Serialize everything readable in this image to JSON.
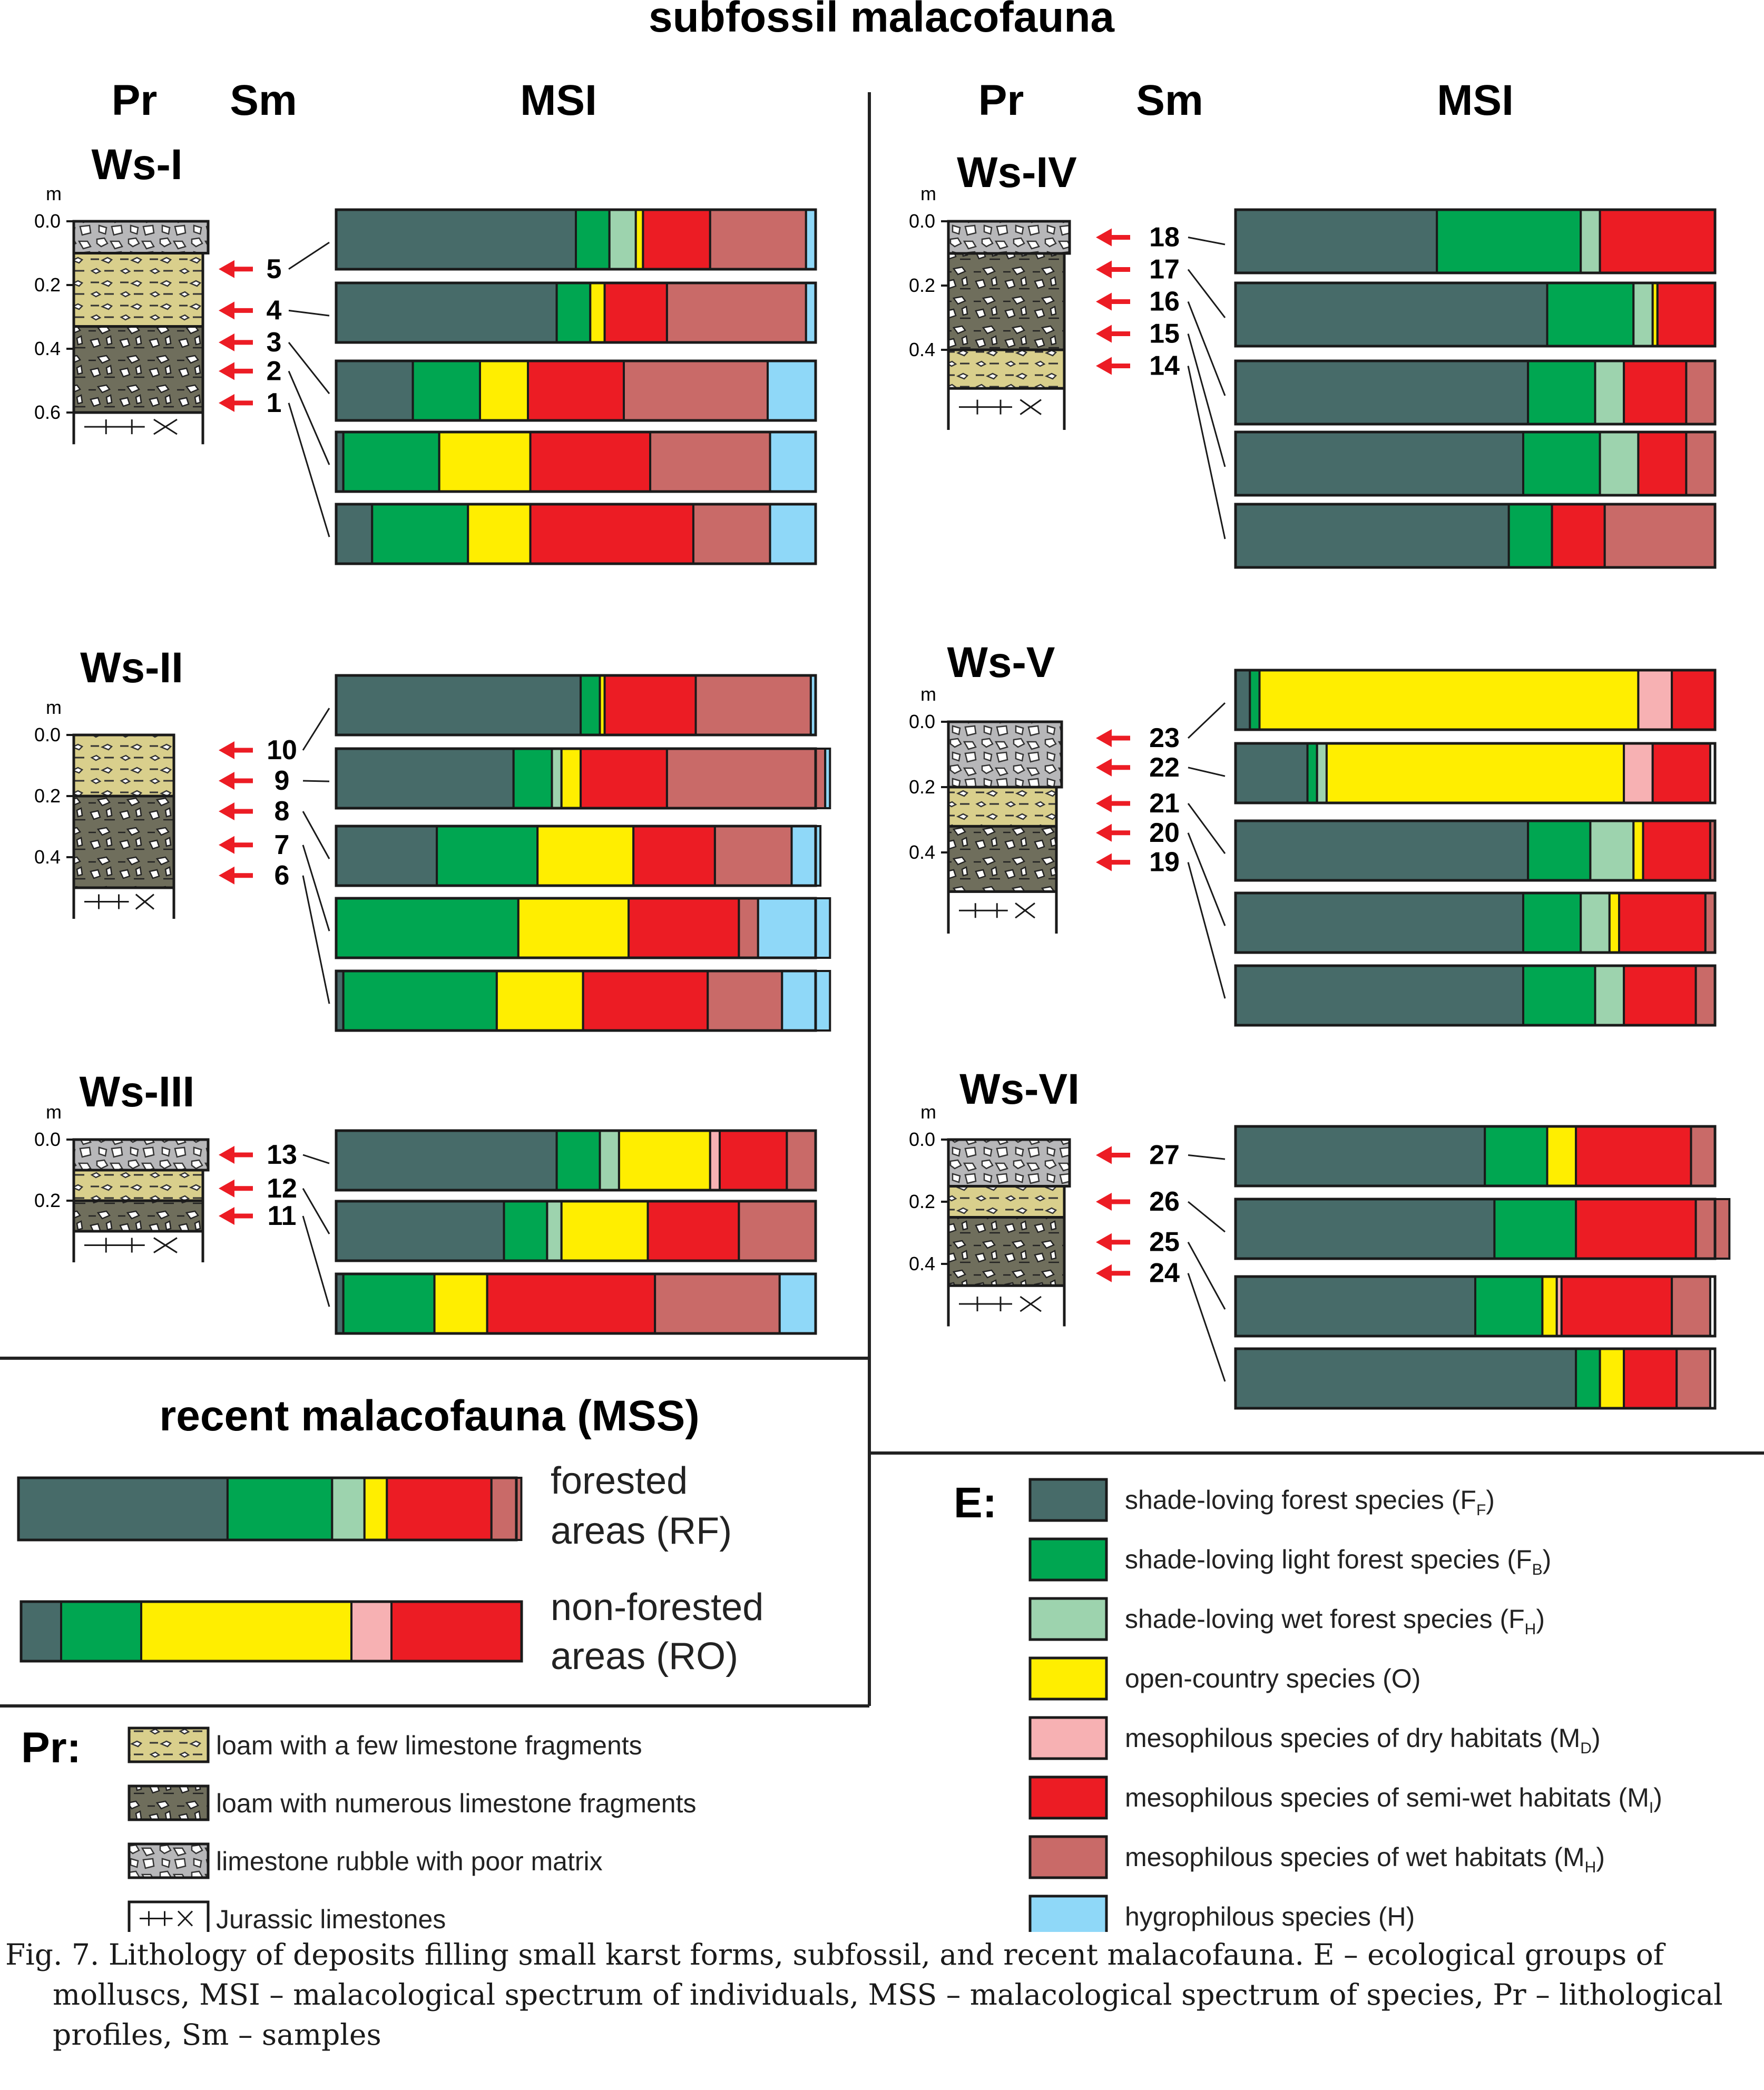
{
  "title": "subfossil malacofauna",
  "column_headers": {
    "pr": "Pr",
    "sm": "Sm",
    "msi": "MSI"
  },
  "depth_unit": "m",
  "colors": {
    "FF": "#476b69",
    "FB": "#00a651",
    "FH": "#9dd3ae",
    "O": "#ffee00",
    "MD": "#f7b1b3",
    "MI": "#ec1c24",
    "MH": "#c96a68",
    "H": "#8fd8f8"
  },
  "group_order": [
    "FF",
    "FB",
    "FH",
    "O",
    "MD",
    "MI",
    "MH",
    "H"
  ],
  "chart_data": {
    "type": "bar",
    "stacked": true,
    "orientation": "horizontal",
    "units": "proportion of total (MSI / MSS)",
    "profiles": [
      {
        "name": "Ws-I",
        "depth_ticks": [
          "0.0",
          "0.2",
          "0.4",
          "0.6"
        ],
        "max_depth": 0.65,
        "layers": [
          {
            "type": "rubble",
            "top": 0.0,
            "bottom": 0.1
          },
          {
            "type": "loam_few",
            "top": 0.1,
            "bottom": 0.33
          },
          {
            "type": "loam_many",
            "top": 0.33,
            "bottom": 0.6
          },
          {
            "type": "jurassic",
            "top": 0.6,
            "bottom": 0.65
          }
        ],
        "samples": [
          {
            "id": "5",
            "depth": 0.15,
            "values": {
              "FF": 0.5,
              "FB": 0.07,
              "FH": 0.055,
              "O": 0.015,
              "MI": 0.14,
              "MH": 0.2,
              "H": 0.02
            }
          },
          {
            "id": "4",
            "depth": 0.28,
            "values": {
              "FF": 0.46,
              "FB": 0.07,
              "O": 0.03,
              "MI": 0.13,
              "MH": 0.29,
              "H": 0.02
            }
          },
          {
            "id": "3",
            "depth": 0.38,
            "values": {
              "FF": 0.16,
              "FB": 0.14,
              "O": 0.1,
              "MI": 0.2,
              "MH": 0.3,
              "H": 0.1
            }
          },
          {
            "id": "2",
            "depth": 0.47,
            "values": {
              "FF": 0.015,
              "FB": 0.2,
              "O": 0.19,
              "MI": 0.25,
              "MH": 0.25,
              "H": 0.095
            }
          },
          {
            "id": "1",
            "depth": 0.57,
            "values": {
              "FF": 0.075,
              "FB": 0.2,
              "O": 0.13,
              "MI": 0.34,
              "MH": 0.16,
              "H": 0.095
            }
          }
        ]
      },
      {
        "name": "Ws-II",
        "depth_ticks": [
          "0.0",
          "0.2",
          "0.4"
        ],
        "max_depth": 0.55,
        "layers": [
          {
            "type": "loam_few",
            "top": 0.0,
            "bottom": 0.2
          },
          {
            "type": "loam_many",
            "top": 0.2,
            "bottom": 0.5
          },
          {
            "type": "jurassic",
            "top": 0.5,
            "bottom": 0.55
          }
        ],
        "samples": [
          {
            "id": "10",
            "depth": 0.05,
            "values": {
              "FF": 0.51,
              "FB": 0.04,
              "O": 0.01,
              "MI": 0.19,
              "MH": 0.24,
              "H": 0.01
            }
          },
          {
            "id": "9",
            "depth": 0.15,
            "values": {
              "FF": 0.37,
              "FB": 0.08,
              "FH": 0.02,
              "O": 0.04,
              "MI": 0.18,
              "MH": 0.33,
              "H": 0.01
            }
          },
          {
            "id": "8",
            "depth": 0.25,
            "values": {
              "FF": 0.21,
              "FB": 0.21,
              "O": 0.2,
              "MI": 0.17,
              "MH": 0.16,
              "H": 0.06
            }
          },
          {
            "id": "7",
            "depth": 0.36,
            "values": {
              "FF": 0.0,
              "FB": 0.38,
              "O": 0.23,
              "MI": 0.23,
              "MH": 0.04,
              "H": 0.15
            }
          },
          {
            "id": "6",
            "depth": 0.46,
            "values": {
              "FF": 0.015,
              "FB": 0.32,
              "O": 0.18,
              "MI": 0.26,
              "MH": 0.155,
              "H": 0.1
            }
          }
        ]
      },
      {
        "name": "Ws-III",
        "depth_ticks": [
          "0.0",
          "0.2"
        ],
        "max_depth": 0.35,
        "layers": [
          {
            "type": "rubble",
            "top": 0.0,
            "bottom": 0.1
          },
          {
            "type": "loam_few",
            "top": 0.1,
            "bottom": 0.2
          },
          {
            "type": "loam_many",
            "top": 0.2,
            "bottom": 0.3
          },
          {
            "type": "jurassic",
            "top": 0.3,
            "bottom": 0.35
          }
        ],
        "samples": [
          {
            "id": "13",
            "depth": 0.05,
            "values": {
              "FF": 0.46,
              "FB": 0.09,
              "FH": 0.04,
              "O": 0.19,
              "MD": 0.02,
              "MI": 0.14,
              "MH": 0.06
            }
          },
          {
            "id": "12",
            "depth": 0.16,
            "values": {
              "FF": 0.35,
              "FB": 0.09,
              "FH": 0.03,
              "O": 0.18,
              "MI": 0.19,
              "MH": 0.16
            }
          },
          {
            "id": "11",
            "depth": 0.25,
            "values": {
              "FF": 0.015,
              "FB": 0.19,
              "O": 0.11,
              "MI": 0.35,
              "MH": 0.26,
              "H": 0.075
            }
          }
        ]
      },
      {
        "name": "Ws-IV",
        "depth_ticks": [
          "0.0",
          "0.2",
          "0.4"
        ],
        "max_depth": 0.6,
        "layers": [
          {
            "type": "rubble",
            "top": 0.0,
            "bottom": 0.1
          },
          {
            "type": "loam_many",
            "top": 0.1,
            "bottom": 0.4
          },
          {
            "type": "loam_few",
            "top": 0.4,
            "bottom": 0.52
          },
          {
            "type": "jurassic",
            "top": 0.52,
            "bottom": 0.6
          }
        ],
        "samples": [
          {
            "id": "18",
            "depth": 0.05,
            "values": {
              "FF": 0.42,
              "FB": 0.3,
              "FH": 0.04,
              "MI": 0.24
            }
          },
          {
            "id": "17",
            "depth": 0.15,
            "values": {
              "FF": 0.65,
              "FB": 0.18,
              "FH": 0.04,
              "O": 0.01,
              "MI": 0.12
            }
          },
          {
            "id": "16",
            "depth": 0.25,
            "values": {
              "FF": 0.61,
              "FB": 0.14,
              "FH": 0.06,
              "MI": 0.13,
              "MH": 0.06
            }
          },
          {
            "id": "15",
            "depth": 0.35,
            "values": {
              "FF": 0.6,
              "FB": 0.16,
              "FH": 0.08,
              "MI": 0.1,
              "MH": 0.06
            }
          },
          {
            "id": "14",
            "depth": 0.45,
            "values": {
              "FF": 0.57,
              "FB": 0.09,
              "MI": 0.11,
              "MH": 0.23
            }
          }
        ]
      },
      {
        "name": "Ws-V",
        "depth_ticks": [
          "0.0",
          "0.2",
          "0.4"
        ],
        "max_depth": 0.6,
        "layers": [
          {
            "type": "rubble",
            "top": 0.0,
            "bottom": 0.2
          },
          {
            "type": "loam_few",
            "top": 0.2,
            "bottom": 0.32
          },
          {
            "type": "loam_many",
            "top": 0.32,
            "bottom": 0.52
          },
          {
            "type": "jurassic",
            "top": 0.52,
            "bottom": 0.6
          }
        ],
        "samples": [
          {
            "id": "23",
            "depth": 0.05,
            "values": {
              "FF": 0.03,
              "FB": 0.02,
              "O": 0.79,
              "MD": 0.07,
              "MI": 0.09
            }
          },
          {
            "id": "22",
            "depth": 0.14,
            "values": {
              "FF": 0.15,
              "FB": 0.02,
              "FH": 0.02,
              "O": 0.62,
              "MD": 0.06,
              "MI": 0.12
            }
          },
          {
            "id": "21",
            "depth": 0.25,
            "values": {
              "FF": 0.61,
              "FB": 0.13,
              "FH": 0.09,
              "O": 0.02,
              "MI": 0.14,
              "MH": 0.01
            }
          },
          {
            "id": "20",
            "depth": 0.34,
            "values": {
              "FF": 0.6,
              "FB": 0.12,
              "FH": 0.06,
              "O": 0.02,
              "MI": 0.18,
              "MH": 0.02
            }
          },
          {
            "id": "19",
            "depth": 0.43,
            "values": {
              "FF": 0.6,
              "FB": 0.15,
              "FH": 0.06,
              "MI": 0.15,
              "MH": 0.04
            }
          }
        ]
      },
      {
        "name": "Ws-VI",
        "depth_ticks": [
          "0.0",
          "0.2",
          "0.4"
        ],
        "max_depth": 0.55,
        "layers": [
          {
            "type": "rubble",
            "top": 0.0,
            "bottom": 0.15
          },
          {
            "type": "loam_few",
            "top": 0.15,
            "bottom": 0.25
          },
          {
            "type": "loam_many",
            "top": 0.25,
            "bottom": 0.47
          },
          {
            "type": "jurassic",
            "top": 0.47,
            "bottom": 0.55
          }
        ],
        "samples": [
          {
            "id": "27",
            "depth": 0.05,
            "values": {
              "FF": 0.52,
              "FB": 0.13,
              "O": 0.06,
              "MI": 0.24,
              "MH": 0.05
            }
          },
          {
            "id": "26",
            "depth": 0.2,
            "values": {
              "FF": 0.54,
              "FB": 0.17,
              "MI": 0.25,
              "MH": 0.07
            }
          },
          {
            "id": "25",
            "depth": 0.33,
            "values": {
              "FF": 0.5,
              "FB": 0.14,
              "O": 0.03,
              "MD": 0.01,
              "MI": 0.23,
              "MH": 0.08
            }
          },
          {
            "id": "24",
            "depth": 0.43,
            "values": {
              "FF": 0.71,
              "FB": 0.05,
              "O": 0.05,
              "MI": 0.11,
              "MH": 0.07
            }
          }
        ]
      }
    ],
    "recent": [
      {
        "label": "forested areas (RF)",
        "values": {
          "FF": 0.42,
          "FB": 0.21,
          "FH": 0.065,
          "O": 0.045,
          "MI": 0.21,
          "MH": 0.06
        }
      },
      {
        "label": "non-forested areas (RO)",
        "values": {
          "FF": 0.08,
          "FB": 0.16,
          "O": 0.42,
          "MD": 0.08,
          "MI": 0.26
        }
      }
    ]
  },
  "recent_title": "recent malacofauna (MSS)",
  "recent_labels": [
    {
      "line1": "forested",
      "line2": "areas (RF)"
    },
    {
      "line1": "non-forested",
      "line2": "areas (RO)"
    }
  ],
  "pr_legend": {
    "title": "Pr:",
    "items": [
      {
        "key": "loam_few",
        "label": "loam with a few limestone fragments"
      },
      {
        "key": "loam_many",
        "label": "loam with numerous limestone fragments"
      },
      {
        "key": "rubble",
        "label": "limestone rubble with poor matrix"
      },
      {
        "key": "jurassic",
        "label": "Jurassic limestones"
      }
    ]
  },
  "e_legend": {
    "title": "E:",
    "items": [
      {
        "key": "FF",
        "label": "shade-loving forest species (F",
        "sub": "F",
        "end": ")"
      },
      {
        "key": "FB",
        "label": "shade-loving light forest species (F",
        "sub": "B",
        "end": ")"
      },
      {
        "key": "FH",
        "label": "shade-loving wet forest species (F",
        "sub": "H",
        "end": ")"
      },
      {
        "key": "O",
        "label": "open-country species (O)",
        "sub": "",
        "end": ""
      },
      {
        "key": "MD",
        "label": "mesophilous species of dry habitats (M",
        "sub": "D",
        "end": ")"
      },
      {
        "key": "MI",
        "label": "mesophilous species of semi-wet habitats (M",
        "sub": "I",
        "end": ")"
      },
      {
        "key": "MH",
        "label": "mesophilous species of wet habitats (M",
        "sub": "H",
        "end": ")"
      },
      {
        "key": "H",
        "label": "hygrophilous species (H)",
        "sub": "",
        "end": ""
      }
    ]
  },
  "caption": "Fig. 7. Lithology of deposits filling small karst forms, subfossil, and recent malacofauna. E – ecological groups of molluscs, MSI – malacological spectrum of individuals, MSS – malacological spectrum of species, Pr – lithological profiles, Sm – samples"
}
